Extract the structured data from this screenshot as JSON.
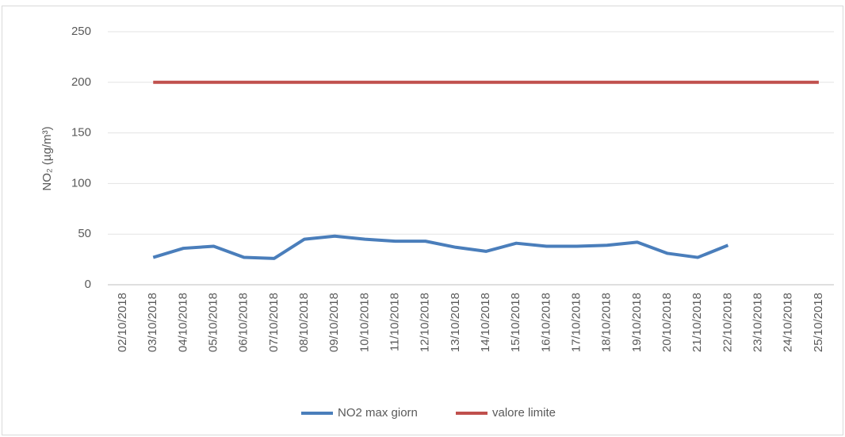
{
  "chart_data": {
    "type": "line",
    "y_label": "NO₂ (µg/m³)",
    "categories": [
      "02/10/2018",
      "03/10/2018",
      "04/10/2018",
      "05/10/2018",
      "06/10/2018",
      "07/10/2018",
      "08/10/2018",
      "09/10/2018",
      "10/10/2018",
      "11/10/2018",
      "12/10/2018",
      "13/10/2018",
      "14/10/2018",
      "15/10/2018",
      "16/10/2018",
      "17/10/2018",
      "18/10/2018",
      "19/10/2018",
      "20/10/2018",
      "21/10/2018",
      "22/10/2018",
      "23/10/2018",
      "24/10/2018",
      "25/10/2018"
    ],
    "series": [
      {
        "name": "NO2 max giorn",
        "color": "#4a7ebb",
        "values": [
          null,
          27,
          36,
          38,
          27,
          26,
          45,
          48,
          45,
          43,
          43,
          37,
          33,
          41,
          38,
          38,
          39,
          42,
          31,
          27,
          39,
          null,
          null,
          null
        ]
      },
      {
        "name": "valore limite",
        "color": "#c0504d",
        "values": [
          null,
          200,
          200,
          200,
          200,
          200,
          200,
          200,
          200,
          200,
          200,
          200,
          200,
          200,
          200,
          200,
          200,
          200,
          200,
          200,
          200,
          200,
          200,
          200
        ]
      }
    ],
    "ylim": [
      0,
      250
    ],
    "yticks": [
      0,
      50,
      100,
      150,
      200,
      250
    ],
    "grid": true,
    "legend": "bottom"
  }
}
